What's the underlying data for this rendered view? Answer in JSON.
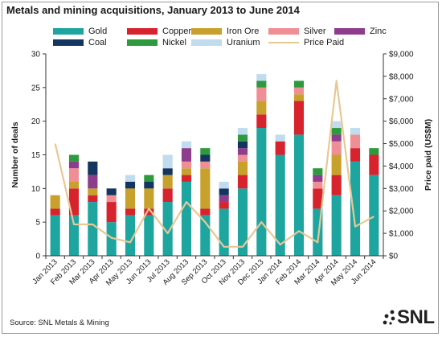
{
  "title": "Metals and mining acquisitions, January 2013 to June 2014",
  "legend": [
    {
      "label": "Gold",
      "color": "#1fa5a0",
      "kind": "bar"
    },
    {
      "label": "Copper",
      "color": "#d7232e",
      "kind": "bar"
    },
    {
      "label": "Iron Ore",
      "color": "#c8a02c",
      "kind": "bar"
    },
    {
      "label": "Silver",
      "color": "#ef8f95",
      "kind": "bar"
    },
    {
      "label": "Zinc",
      "color": "#8e3c8c",
      "kind": "bar"
    },
    {
      "label": "Coal",
      "color": "#14355f",
      "kind": "bar"
    },
    {
      "label": "Nickel",
      "color": "#2e9a3e",
      "kind": "bar"
    },
    {
      "label": "Uranium",
      "color": "#c1dbef",
      "kind": "bar"
    },
    {
      "label": "Price Paid",
      "color": "#e8c894",
      "kind": "line"
    }
  ],
  "chart_data": {
    "type": "bar",
    "stacked": true,
    "title": "Metals and mining acquisitions, January 2013 to June 2014",
    "categories": [
      "Jan 2013",
      "Feb 2013",
      "Mar 2013",
      "Apr 2013",
      "May 2013",
      "Jun 2013",
      "Jul 2013",
      "Aug 2013",
      "Sep 2013",
      "Oct 2013",
      "Nov 2013",
      "Dec 2013",
      "Jan 2014",
      "Feb 2014",
      "Mar 2014",
      "Apr 2014",
      "May 2014",
      "Jun 2014"
    ],
    "ylabel": "Number of deals",
    "ylim": [
      0,
      30
    ],
    "yticks": [
      "0",
      "5",
      "10",
      "15",
      "20",
      "25",
      "30"
    ],
    "y2label": "Price paid (US$M)",
    "y2lim": [
      0,
      9000
    ],
    "y2ticks": [
      "$0",
      "$1,000",
      "$2,000",
      "$3,000",
      "$4,000",
      "$5,000",
      "$6,000",
      "$7,000",
      "$8,000",
      "$9,000"
    ],
    "grid": false,
    "legend_position": "top",
    "series": [
      {
        "name": "Gold",
        "color": "#1fa5a0",
        "values": [
          6,
          6,
          8,
          5,
          6,
          6,
          8,
          11,
          6,
          7,
          10,
          19,
          15,
          18,
          7,
          9,
          14,
          12
        ]
      },
      {
        "name": "Copper",
        "color": "#d7232e",
        "values": [
          1,
          4,
          1,
          3,
          1,
          1,
          2,
          1,
          1,
          1,
          2,
          2,
          2,
          5,
          3,
          3,
          2,
          3
        ]
      },
      {
        "name": "Iron Ore",
        "color": "#c8a02c",
        "values": [
          2,
          1,
          1,
          0,
          3,
          3,
          2,
          1,
          6,
          0,
          2,
          2,
          0,
          1,
          0,
          3,
          0,
          0
        ]
      },
      {
        "name": "Silver",
        "color": "#ef8f95",
        "values": [
          0,
          2,
          0,
          1,
          0,
          0,
          0,
          1,
          1,
          0,
          1,
          2,
          0,
          1,
          1,
          2,
          2,
          0
        ]
      },
      {
        "name": "Zinc",
        "color": "#8e3c8c",
        "values": [
          0,
          1,
          2,
          0,
          0,
          0,
          0,
          2,
          0,
          1,
          1,
          0,
          0,
          0,
          1,
          1,
          0,
          0
        ]
      },
      {
        "name": "Coal",
        "color": "#14355f",
        "values": [
          0,
          0,
          2,
          1,
          1,
          1,
          1,
          0,
          1,
          1,
          1,
          0,
          0,
          0,
          0,
          0,
          0,
          0
        ]
      },
      {
        "name": "Nickel",
        "color": "#2e9a3e",
        "values": [
          0,
          1,
          0,
          0,
          0,
          1,
          0,
          0,
          1,
          0,
          1,
          1,
          0,
          1,
          1,
          1,
          0,
          1
        ]
      },
      {
        "name": "Uranium",
        "color": "#c1dbef",
        "values": [
          0,
          0,
          0,
          0,
          1,
          0,
          2,
          1,
          0,
          1,
          1,
          1,
          1,
          0,
          0,
          1,
          1,
          0
        ]
      }
    ],
    "line_series": {
      "name": "Price Paid",
      "color": "#e8c894",
      "axis": "right",
      "values": [
        5000,
        1400,
        1400,
        800,
        600,
        2100,
        1000,
        2400,
        1500,
        400,
        400,
        1500,
        500,
        1100,
        600,
        7800,
        1300,
        1750
      ]
    }
  },
  "source": "Source: SNL Metals & Mining",
  "logo_text": "SNL"
}
